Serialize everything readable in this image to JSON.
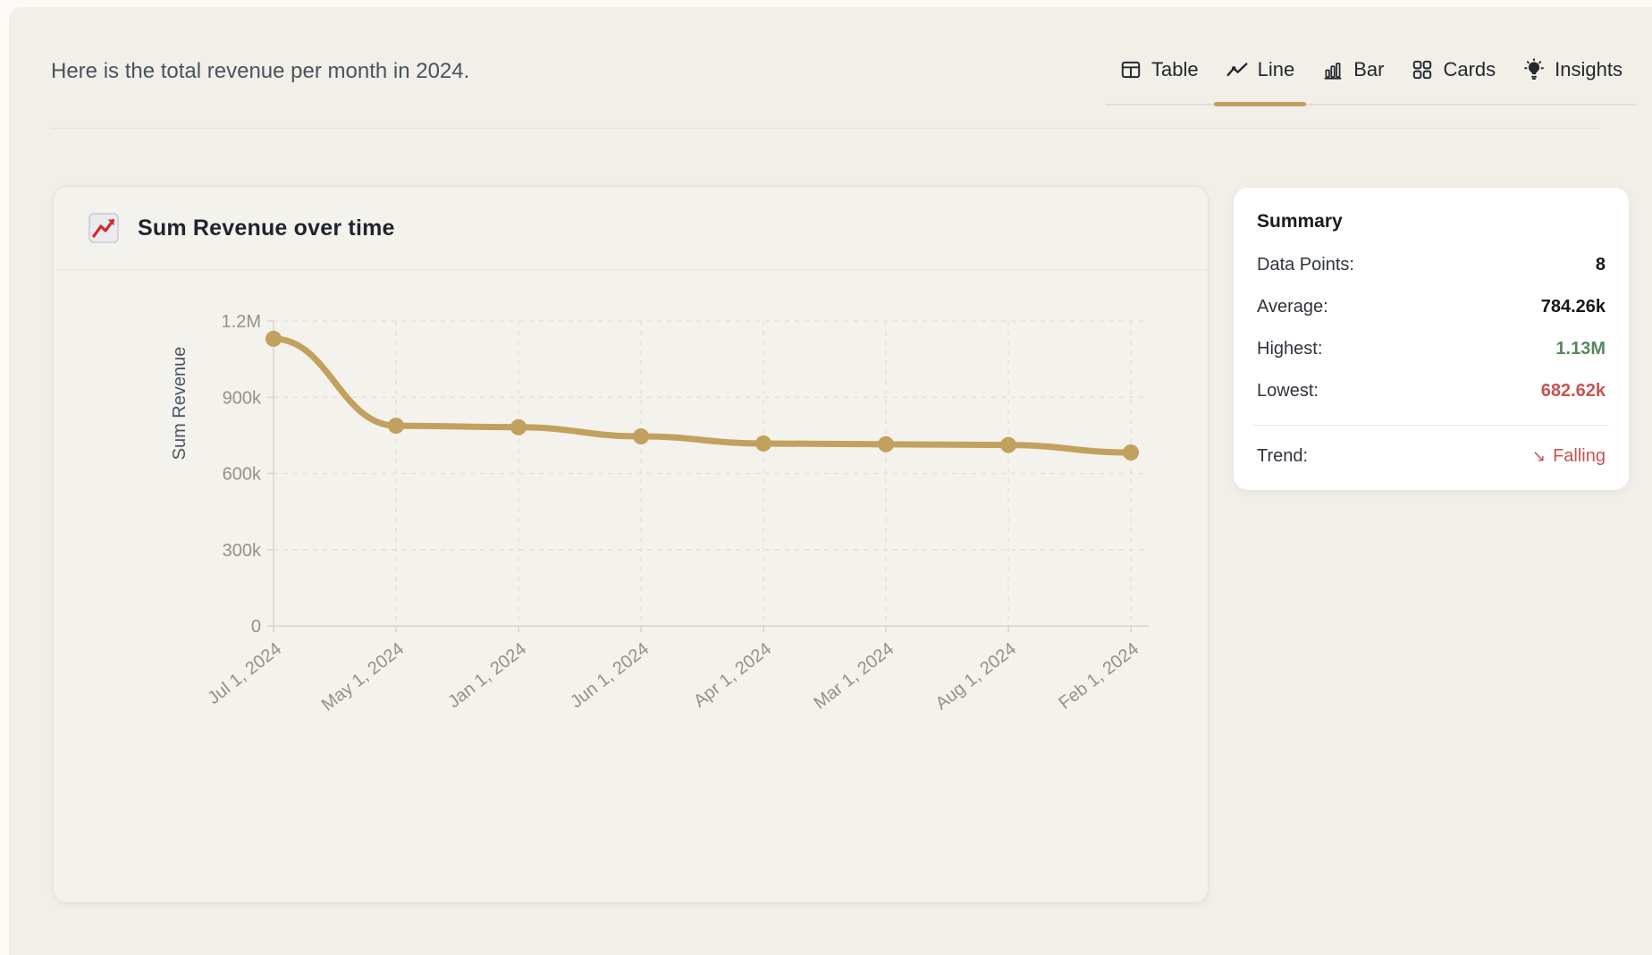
{
  "colors": {
    "accent": "#c2a05e",
    "positive": "#55895c",
    "negative": "#c9534e"
  },
  "header": {
    "message": "Here is the total revenue per month in 2024."
  },
  "tabs": [
    {
      "id": "table",
      "label": "Table",
      "icon": "table-icon",
      "active": false
    },
    {
      "id": "line",
      "label": "Line",
      "icon": "line-chart-icon",
      "active": true
    },
    {
      "id": "bar",
      "label": "Bar",
      "icon": "bar-chart-icon",
      "active": false
    },
    {
      "id": "cards",
      "label": "Cards",
      "icon": "cards-icon",
      "active": false
    },
    {
      "id": "insights",
      "label": "Insights",
      "icon": "insights-icon",
      "active": false
    }
  ],
  "chart_card": {
    "title": "Sum Revenue over time",
    "icon": "chart-increasing-emoji"
  },
  "chart_data": {
    "type": "line",
    "title": "Sum Revenue over time",
    "x": [
      "Jul 1, 2024",
      "May 1, 2024",
      "Jan 1, 2024",
      "Jun 1, 2024",
      "Apr 1, 2024",
      "Mar 1, 2024",
      "Aug 1, 2024",
      "Feb 1, 2024"
    ],
    "series": [
      {
        "name": "Sum Revenue",
        "values": [
          1130000,
          788000,
          782000,
          746000,
          718000,
          715000,
          712000,
          682620
        ]
      }
    ],
    "xlabel": "",
    "ylabel": "Sum Revenue",
    "ylim": [
      0,
      1200000
    ],
    "yticks": [
      {
        "v": 0,
        "label": "0"
      },
      {
        "v": 300000,
        "label": "300k"
      },
      {
        "v": 600000,
        "label": "600k"
      },
      {
        "v": 900000,
        "label": "900k"
      },
      {
        "v": 1200000,
        "label": "1.2M"
      }
    ],
    "grid": true,
    "legend": "none",
    "line_color": "#c2a05e"
  },
  "summary": {
    "title": "Summary",
    "rows": [
      {
        "label": "Data Points:",
        "value": "8",
        "color": "default"
      },
      {
        "label": "Average:",
        "value": "784.26k",
        "color": "default"
      },
      {
        "label": "Highest:",
        "value": "1.13M",
        "color": "green"
      },
      {
        "label": "Lowest:",
        "value": "682.62k",
        "color": "red"
      }
    ],
    "trend": {
      "label": "Trend:",
      "arrow": "↘",
      "value": "Falling",
      "color": "red"
    }
  }
}
